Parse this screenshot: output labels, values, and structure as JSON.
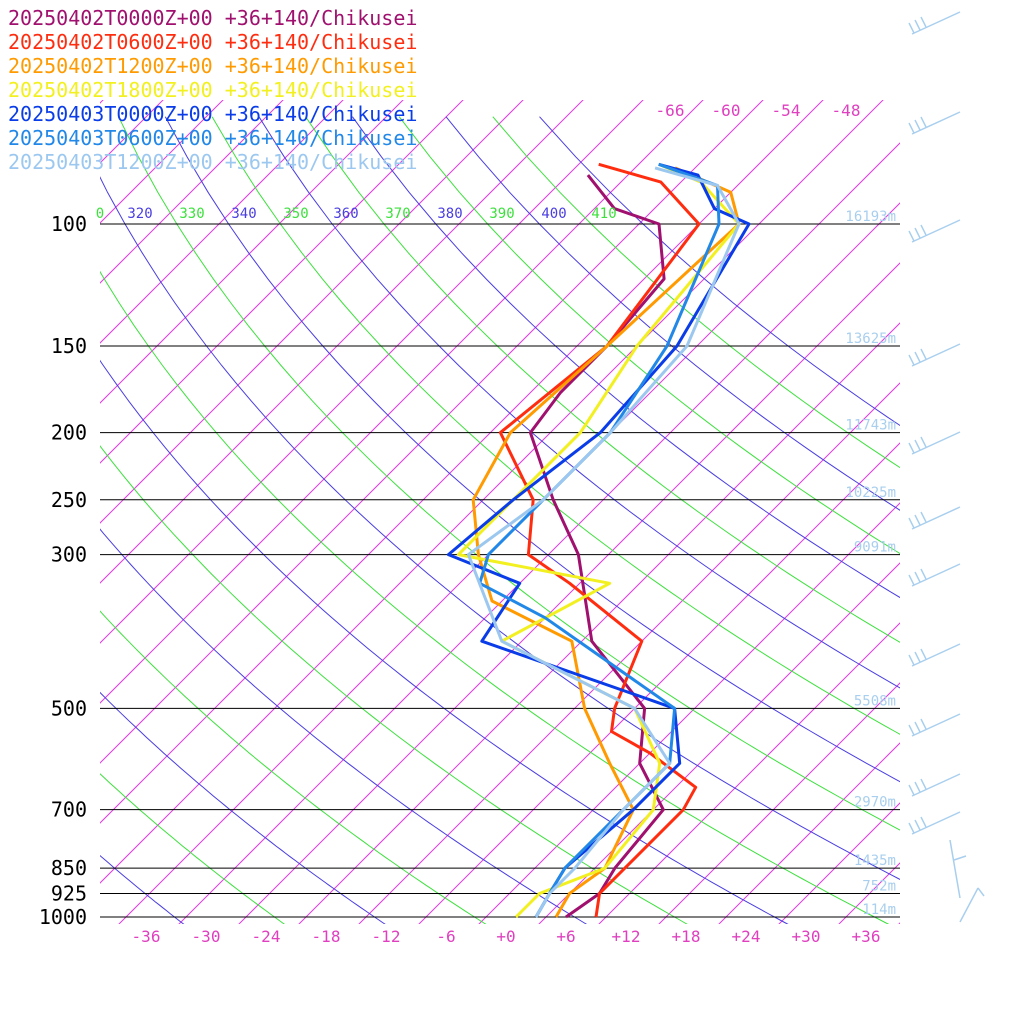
{
  "legend": [
    {
      "label": "20250402T0000Z+00 +36+140/Chikusei",
      "color": "#a0106e"
    },
    {
      "label": "20250402T0600Z+00 +36+140/Chikusei",
      "color": "#ff2d10"
    },
    {
      "label": "20250402T1200Z+00 +36+140/Chikusei",
      "color": "#ff9a00"
    },
    {
      "label": "20250402T1800Z+00 +36+140/Chikusei",
      "color": "#f2f020"
    },
    {
      "label": "20250403T0000Z+00 +36+140/Chikusei",
      "color": "#0a3de8"
    },
    {
      "label": "20250403T0600Z+00 +36+140/Chikusei",
      "color": "#2288e8"
    },
    {
      "label": "20250403T1200Z+00 +36+140/Chikusei",
      "color": "#9cc8f0"
    }
  ],
  "chart_data": {
    "type": "line",
    "chart_kind": "skew-T log-P sounding",
    "x_axis": {
      "label": "",
      "ticks": [
        "-36",
        "-30",
        "-24",
        "-18",
        "-12",
        "-6",
        "+0",
        "+6",
        "+12",
        "+18",
        "+24",
        "+30",
        "+36"
      ]
    },
    "y_axis": {
      "label": "",
      "scale": "log",
      "ticks": [
        "100",
        "150",
        "200",
        "250",
        "300",
        "500",
        "700",
        "850",
        "925",
        "1000"
      ]
    },
    "pressure_levels": [
      100,
      150,
      200,
      250,
      300,
      500,
      700,
      850,
      925,
      1000
    ],
    "height_labels": [
      {
        "p": 100,
        "text": "16193m"
      },
      {
        "p": 150,
        "text": "13625m"
      },
      {
        "p": 200,
        "text": "11743m"
      },
      {
        "p": 250,
        "text": "10225m"
      },
      {
        "p": 300,
        "text": "9091m"
      },
      {
        "p": 500,
        "text": "5508m"
      },
      {
        "p": 700,
        "text": "2970m"
      },
      {
        "p": 850,
        "text": "1435m"
      },
      {
        "p": 925,
        "text": "752m"
      },
      {
        "p": 1000,
        "text": "114m"
      }
    ],
    "theta_labels": [
      "0",
      "320",
      "330",
      "340",
      "350",
      "360",
      "370",
      "380",
      "390",
      "400",
      "410"
    ],
    "mixing_labels": [
      "-66",
      "-60",
      "-54",
      "-48"
    ],
    "series": [
      {
        "name": "20250402T0000Z+00 +36+140/Chikusei",
        "color": "#a0106e",
        "points": [
          [
            -66,
            85
          ],
          [
            -60,
            95
          ],
          [
            -54,
            100
          ],
          [
            -48,
            120
          ],
          [
            -47,
            150
          ],
          [
            -47,
            175
          ],
          [
            -46,
            200
          ],
          [
            -37,
            250
          ],
          [
            -29,
            300
          ],
          [
            -19,
            400
          ],
          [
            -7,
            500
          ],
          [
            -2,
            600
          ],
          [
            5,
            700
          ],
          [
            6,
            850
          ],
          [
            7,
            925
          ],
          [
            6,
            1000
          ]
        ]
      },
      {
        "name": "20250402T0600Z+00 +36+140/Chikusei",
        "color": "#ff2d10",
        "points": [
          [
            -66,
            82
          ],
          [
            -58,
            87
          ],
          [
            -50,
            100
          ],
          [
            -47,
            150
          ],
          [
            -49,
            200
          ],
          [
            -39,
            250
          ],
          [
            -34,
            300
          ],
          [
            -27,
            330
          ],
          [
            -14,
            400
          ],
          [
            -10,
            500
          ],
          [
            -8,
            540
          ],
          [
            -2,
            580
          ],
          [
            6,
            650
          ],
          [
            7,
            700
          ],
          [
            7,
            850
          ],
          [
            7,
            925
          ],
          [
            9,
            1000
          ]
        ]
      },
      {
        "name": "20250402T1200Z+00 +36+140/Chikusei",
        "color": "#ff9a00",
        "points": [
          [
            -58,
            83
          ],
          [
            -50,
            90
          ],
          [
            -46,
            100
          ],
          [
            -47,
            150
          ],
          [
            -48,
            200
          ],
          [
            -45,
            250
          ],
          [
            -39,
            300
          ],
          [
            -33,
            350
          ],
          [
            -21,
            400
          ],
          [
            -13,
            500
          ],
          [
            -5,
            600
          ],
          [
            2,
            700
          ],
          [
            5,
            850
          ],
          [
            4,
            925
          ],
          [
            5,
            1000
          ]
        ]
      },
      {
        "name": "20250402T1800Z+00 +36+140/Chikusei",
        "color": "#f2f020",
        "points": [
          [
            -60,
            82
          ],
          [
            -54,
            87
          ],
          [
            -46,
            100
          ],
          [
            -44,
            150
          ],
          [
            -41,
            200
          ],
          [
            -41,
            250
          ],
          [
            -41,
            300
          ],
          [
            -23,
            330
          ],
          [
            -28,
            400
          ],
          [
            -8,
            500
          ],
          [
            0,
            600
          ],
          [
            4,
            700
          ],
          [
            5,
            850
          ],
          [
            1,
            925
          ],
          [
            1,
            1000
          ]
        ]
      },
      {
        "name": "20250403T0000Z+00 +36+140/Chikusei",
        "color": "#0a3de8",
        "points": [
          [
            -60,
            82
          ],
          [
            -55,
            85
          ],
          [
            -50,
            95
          ],
          [
            -45,
            100
          ],
          [
            -40,
            150
          ],
          [
            -39,
            200
          ],
          [
            -41,
            250
          ],
          [
            -42,
            300
          ],
          [
            -32,
            330
          ],
          [
            -30,
            400
          ],
          [
            -4,
            500
          ],
          [
            2,
            600
          ],
          [
            2,
            700
          ],
          [
            1,
            850
          ],
          [
            2,
            925
          ],
          [
            3,
            1000
          ]
        ]
      },
      {
        "name": "20250403T0600Z+00 +36+140/Chikusei",
        "color": "#2288e8",
        "points": [
          [
            -60,
            82
          ],
          [
            -52,
            88
          ],
          [
            -48,
            100
          ],
          [
            -41,
            150
          ],
          [
            -38,
            200
          ],
          [
            -38,
            250
          ],
          [
            -38,
            300
          ],
          [
            -36,
            330
          ],
          [
            -26,
            370
          ],
          [
            -4,
            500
          ],
          [
            1,
            600
          ],
          [
            1,
            700
          ],
          [
            1,
            850
          ],
          [
            2,
            925
          ],
          [
            3,
            1000
          ]
        ]
      },
      {
        "name": "20250403T1200Z+00 +36+140/Chikusei",
        "color": "#9cc8f0",
        "points": [
          [
            -60,
            83
          ],
          [
            -52,
            88
          ],
          [
            -46,
            100
          ],
          [
            -39,
            150
          ],
          [
            -38,
            200
          ],
          [
            -38,
            250
          ],
          [
            -40,
            300
          ],
          [
            -28,
            400
          ],
          [
            -8,
            500
          ],
          [
            1,
            600
          ],
          [
            1,
            700
          ],
          [
            2,
            850
          ],
          [
            2,
            925
          ],
          [
            3,
            1000
          ]
        ]
      }
    ]
  }
}
